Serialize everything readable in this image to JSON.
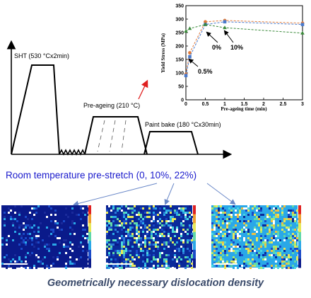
{
  "process": {
    "sht_label": "SHT (530 °Cx2min)",
    "preageing_label": "Pre-ageing (210 °C)",
    "paintbake_label": "Paint bake (180 °Cx30min)",
    "prestretch_label": "Room temperature pre-stretch (0, 10%, 22%)",
    "caption": "Geometrically necessary dislocation density",
    "caption_color": "#3a4a6a",
    "prestretch_color": "#1a1acc"
  },
  "chart_data": {
    "type": "line",
    "xlabel": "Pre-ageing time (min)",
    "ylabel": "Yield Stress (MPa)",
    "xlim": [
      0,
      3
    ],
    "ylim": [
      0,
      350
    ],
    "xticks": [
      "0",
      "0.5",
      "1",
      "1.5",
      "2",
      "2.5",
      "3"
    ],
    "yticks": [
      "0",
      "50",
      "100",
      "150",
      "200",
      "250",
      "300",
      "350"
    ],
    "series": [
      {
        "label": "0%",
        "marker": "circle",
        "color": "#e07a3a",
        "x": [
          0,
          0.1,
          0.5,
          1,
          3
        ],
        "y": [
          95,
          175,
          290,
          295,
          285
        ]
      },
      {
        "label": "0.5%",
        "marker": "square",
        "color": "#4a7acc",
        "x": [
          0,
          0.1,
          0.5,
          1,
          3
        ],
        "y": [
          90,
          160,
          280,
          290,
          280
        ]
      },
      {
        "label": "10%",
        "marker": "triangle",
        "color": "#3a8a3a",
        "x": [
          0,
          0.1,
          0.5,
          1,
          3
        ],
        "y": [
          255,
          265,
          280,
          268,
          248
        ]
      }
    ],
    "grid": false
  },
  "maps": [
    {
      "id": "0%",
      "dominant": "blue"
    },
    {
      "id": "10%",
      "dominant": "cyan"
    },
    {
      "id": "22%",
      "dominant": "yellow-cyan"
    }
  ]
}
